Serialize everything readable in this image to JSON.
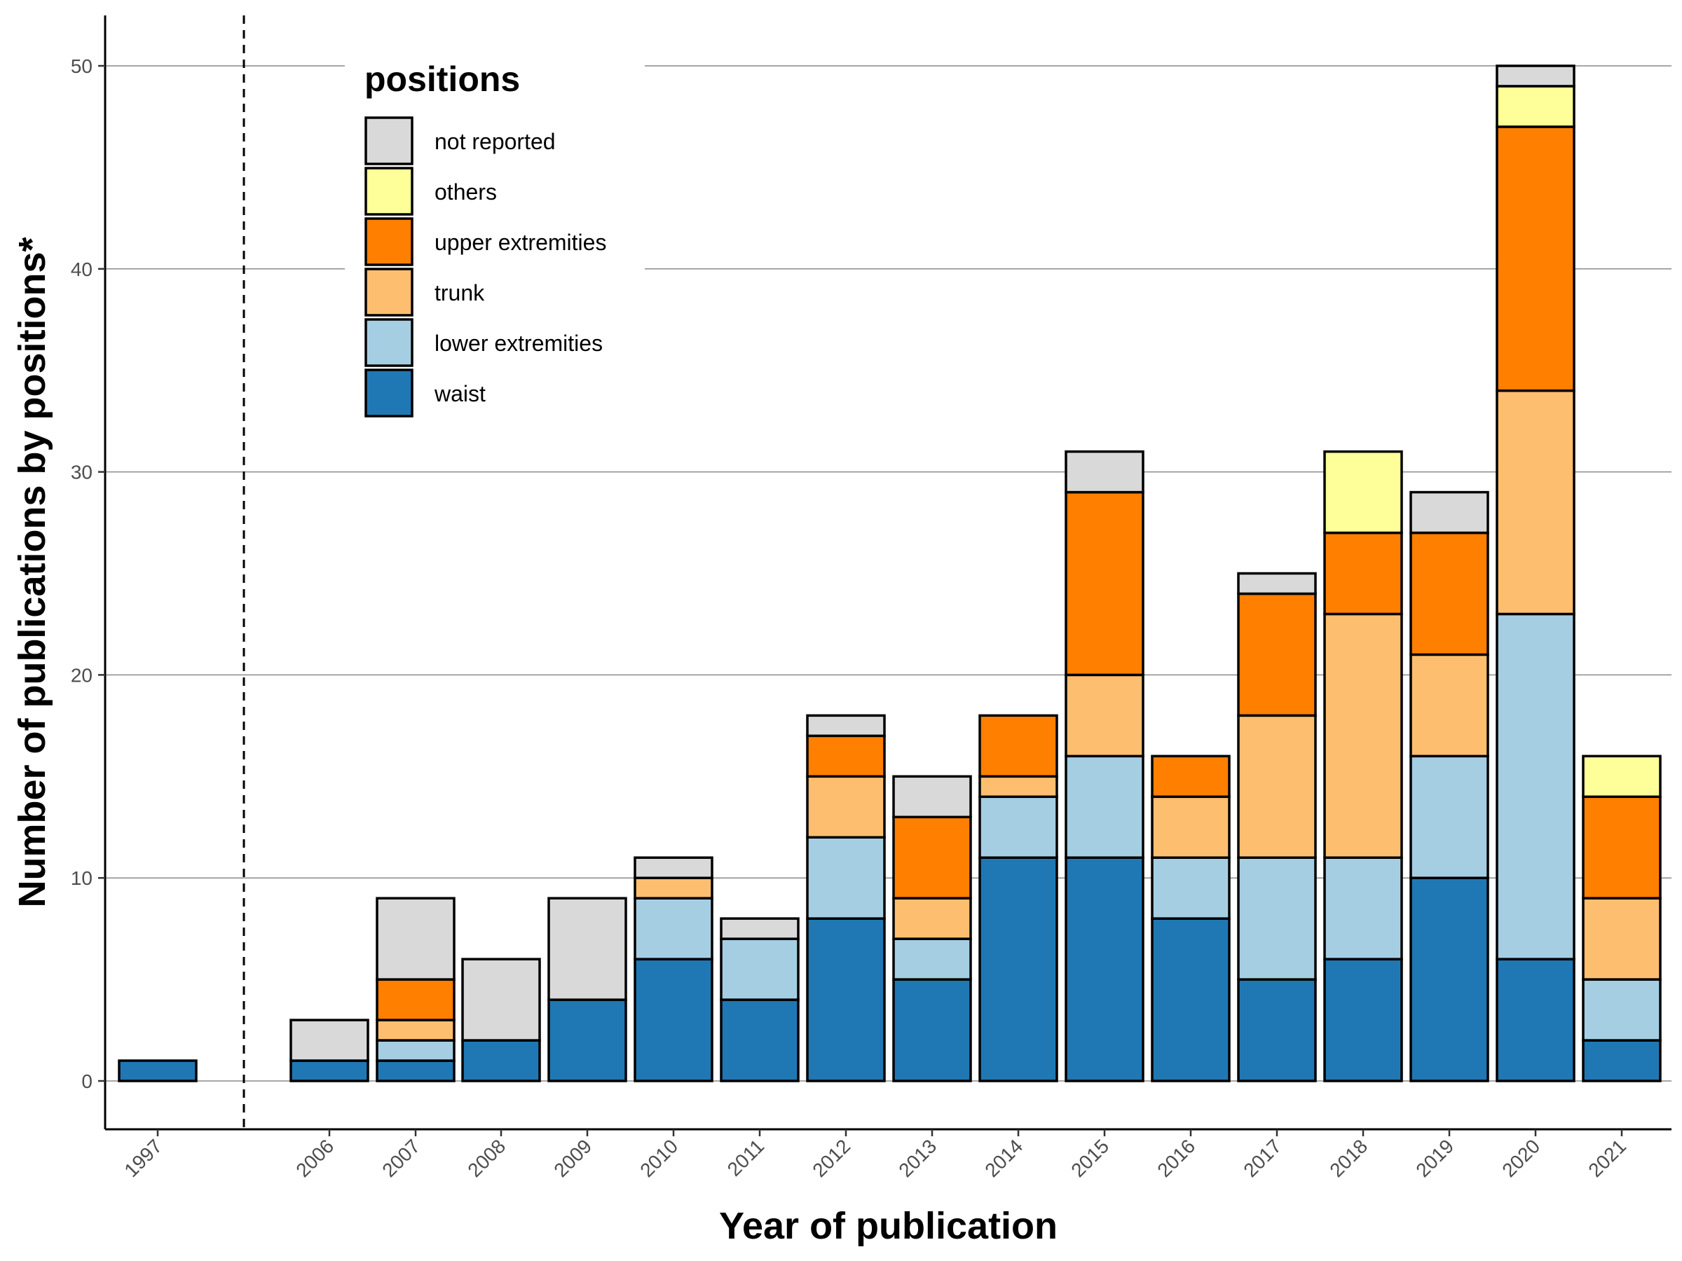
{
  "chart_data": {
    "type": "bar",
    "stacked": true,
    "categories": [
      "1997",
      "2006",
      "2007",
      "2008",
      "2009",
      "2010",
      "2011",
      "2012",
      "2013",
      "2014",
      "2015",
      "2016",
      "2017",
      "2018",
      "2019",
      "2020",
      "2021"
    ],
    "xlabel": "Year of publication",
    "ylabel": "Number of publications by positions*",
    "ylim": [
      -2.5,
      52.5
    ],
    "yticks": [
      0,
      10,
      20,
      30,
      40,
      50
    ],
    "grid": "horizontal major",
    "axis_break_after": "1997",
    "legend": {
      "title": "positions",
      "placement": "top-left inside",
      "order": [
        "not reported",
        "others",
        "upper extremities",
        "trunk",
        "lower extremities",
        "waist"
      ]
    },
    "series": [
      {
        "name": "waist",
        "color": "#1f78b4",
        "values": [
          1,
          1,
          1,
          2,
          4,
          6,
          4,
          8,
          5,
          11,
          11,
          8,
          5,
          6,
          10,
          6,
          2
        ]
      },
      {
        "name": "lower extremities",
        "color": "#a6cee3",
        "values": [
          0,
          0,
          1,
          0,
          0,
          3,
          3,
          4,
          2,
          3,
          5,
          3,
          6,
          5,
          6,
          17,
          3
        ]
      },
      {
        "name": "trunk",
        "color": "#fdbf6f",
        "values": [
          0,
          0,
          1,
          0,
          0,
          1,
          0,
          3,
          2,
          1,
          4,
          3,
          7,
          12,
          5,
          11,
          4
        ]
      },
      {
        "name": "upper extremities",
        "color": "#ff7f00",
        "values": [
          0,
          0,
          2,
          0,
          0,
          0,
          0,
          2,
          4,
          3,
          9,
          2,
          6,
          4,
          6,
          13,
          5
        ]
      },
      {
        "name": "others",
        "color": "#ffff99",
        "values": [
          0,
          0,
          0,
          0,
          0,
          0,
          0,
          0,
          0,
          0,
          0,
          0,
          0,
          4,
          0,
          2,
          2
        ]
      },
      {
        "name": "not reported",
        "color": "#d9d9d9",
        "values": [
          0,
          2,
          4,
          4,
          5,
          1,
          1,
          1,
          2,
          0,
          2,
          0,
          1,
          0,
          2,
          1,
          0
        ]
      }
    ]
  }
}
